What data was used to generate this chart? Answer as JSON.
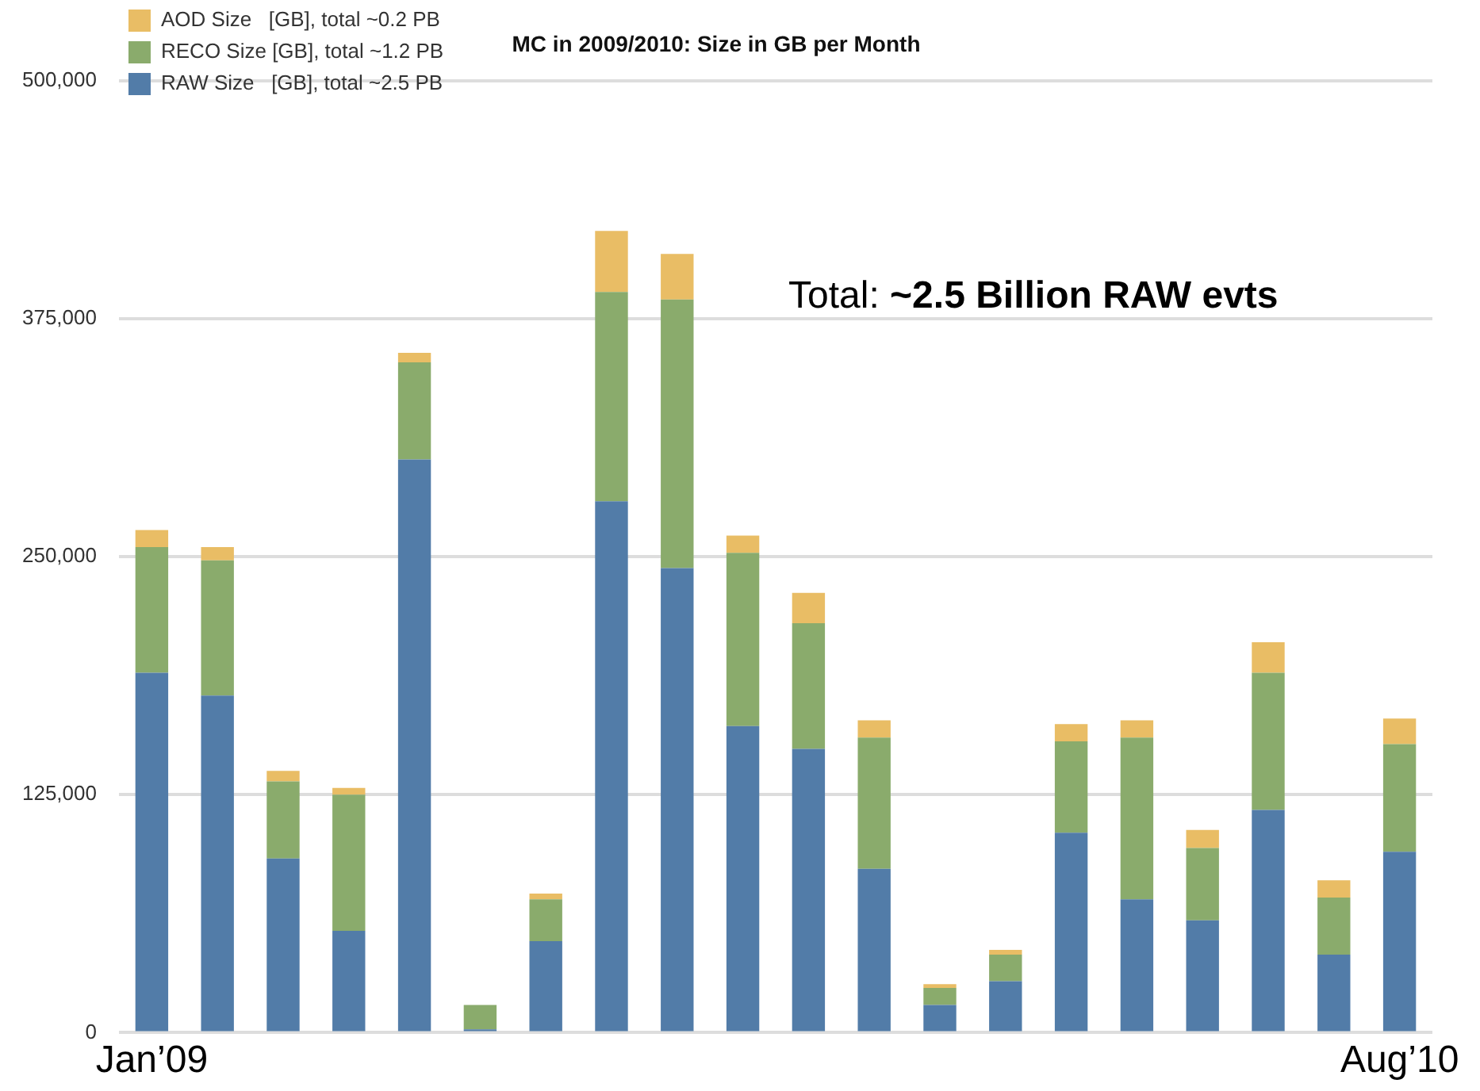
{
  "chart_data": {
    "type": "bar",
    "title": "MC in 2009/2010: Size in GB per Month",
    "categories": [
      "Jan’09",
      null,
      null,
      null,
      null,
      null,
      null,
      null,
      null,
      null,
      null,
      null,
      null,
      null,
      null,
      null,
      null,
      null,
      null,
      "Aug’10"
    ],
    "series": [
      {
        "name": "RAW Size   [GB], total ~2.5 PB",
        "color": "#527ca8",
        "values": [
          189000,
          177000,
          91500,
          53500,
          301000,
          1700,
          48000,
          279000,
          244000,
          161000,
          149000,
          86000,
          14500,
          27000,
          105000,
          70000,
          59000,
          117000,
          41000,
          95000
        ]
      },
      {
        "name": "RECO Size [GB], total ~1.2 PB",
        "color": "#8aab6c",
        "values": [
          66000,
          71000,
          40500,
          71500,
          51000,
          12800,
          22000,
          110000,
          141000,
          91000,
          66000,
          69000,
          9000,
          14000,
          48000,
          85000,
          38000,
          72000,
          30000,
          56500
        ]
      },
      {
        "name": "AOD Size   [GB], total ~0.2 PB",
        "color": "#e9bd65",
        "values": [
          9000,
          7000,
          5500,
          3500,
          5000,
          0,
          3000,
          32000,
          24000,
          9000,
          16000,
          9000,
          2000,
          2500,
          9000,
          9000,
          9500,
          16000,
          9000,
          13500
        ]
      }
    ],
    "stacked": true,
    "ylim": [
      0,
      500000
    ],
    "yticks": [
      {
        "value": 0,
        "label": "0"
      },
      {
        "value": 125000,
        "label": "125,000"
      },
      {
        "value": 250000,
        "label": "250,000"
      },
      {
        "value": 375000,
        "label": "375,000"
      },
      {
        "value": 500000,
        "label": "500,000"
      }
    ],
    "grid": "y",
    "legend": "top left",
    "annotations": [
      "Total: ",
      "~2.5 Billion RAW evts"
    ]
  }
}
